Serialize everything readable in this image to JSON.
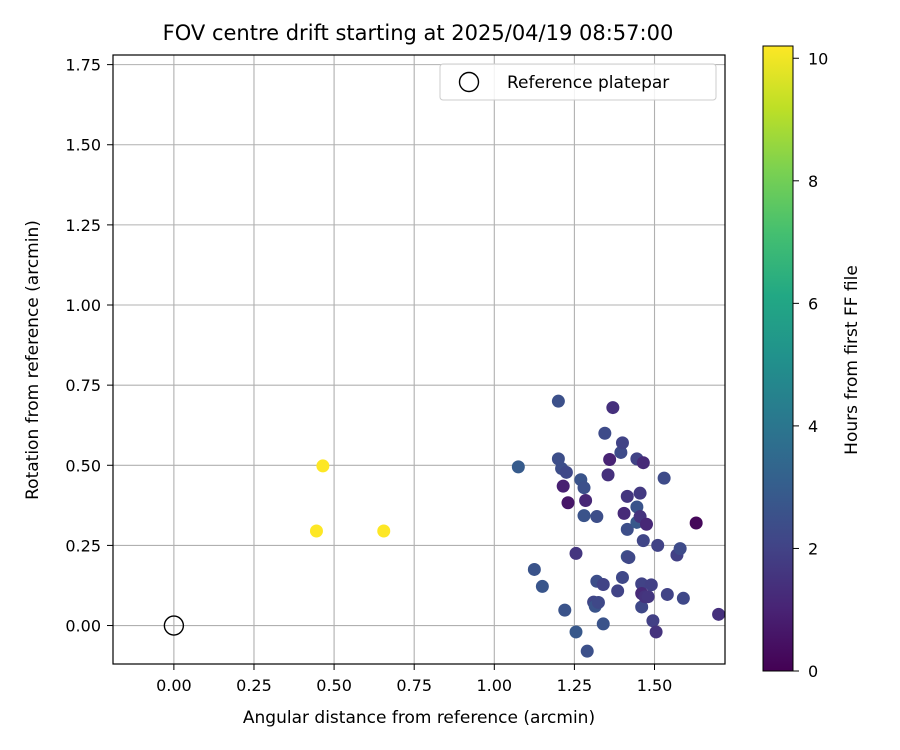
{
  "chart_data": {
    "type": "scatter",
    "title": "FOV centre drift starting at 2025/04/19 08:57:00",
    "xlabel": "Angular distance from reference (arcmin)",
    "ylabel": "Rotation from reference (arcmin)",
    "xlim": [
      -0.19,
      1.72
    ],
    "ylim": [
      -0.12,
      1.78
    ],
    "xticks": [
      "0.00",
      "0.25",
      "0.50",
      "0.75",
      "1.00",
      "1.25",
      "1.50"
    ],
    "yticks": [
      "0.00",
      "0.25",
      "0.50",
      "0.75",
      "1.00",
      "1.25",
      "1.50",
      "1.75"
    ],
    "grid": true,
    "legend": {
      "position": "top-right",
      "label": "Reference platepar"
    },
    "reference_point": {
      "x": 0.0,
      "y": 0.0
    },
    "colorbar": {
      "label": "Hours from first FF file",
      "range": [
        0,
        10.2
      ],
      "ticks": [
        "0",
        "2",
        "4",
        "6",
        "8",
        "10"
      ],
      "colormap": "viridis"
    },
    "points": [
      {
        "x": 0.445,
        "y": 0.295,
        "h": 10.2
      },
      {
        "x": 0.465,
        "y": 0.498,
        "h": 10.2
      },
      {
        "x": 0.655,
        "y": 0.295,
        "h": 10.2
      },
      {
        "x": 1.075,
        "y": 0.495,
        "h": 2.9
      },
      {
        "x": 1.125,
        "y": 0.175,
        "h": 2.6
      },
      {
        "x": 1.15,
        "y": 0.122,
        "h": 2.7
      },
      {
        "x": 1.2,
        "y": 0.7,
        "h": 2.5
      },
      {
        "x": 1.2,
        "y": 0.52,
        "h": 2.4
      },
      {
        "x": 1.21,
        "y": 0.49,
        "h": 2.4
      },
      {
        "x": 1.215,
        "y": 0.435,
        "h": 0.9
      },
      {
        "x": 1.22,
        "y": 0.048,
        "h": 2.6
      },
      {
        "x": 1.225,
        "y": 0.478,
        "h": 2.2
      },
      {
        "x": 1.23,
        "y": 0.383,
        "h": 0.6
      },
      {
        "x": 1.255,
        "y": 0.225,
        "h": 1.6
      },
      {
        "x": 1.255,
        "y": -0.02,
        "h": 2.8
      },
      {
        "x": 1.27,
        "y": 0.455,
        "h": 2.6
      },
      {
        "x": 1.28,
        "y": 0.43,
        "h": 2.5
      },
      {
        "x": 1.28,
        "y": 0.343,
        "h": 2.6
      },
      {
        "x": 1.285,
        "y": 0.39,
        "h": 1.1
      },
      {
        "x": 1.29,
        "y": -0.08,
        "h": 2.5
      },
      {
        "x": 1.31,
        "y": 0.073,
        "h": 2.1
      },
      {
        "x": 1.315,
        "y": 0.06,
        "h": 2.6
      },
      {
        "x": 1.32,
        "y": 0.138,
        "h": 2.4
      },
      {
        "x": 1.32,
        "y": 0.34,
        "h": 2.4
      },
      {
        "x": 1.325,
        "y": 0.072,
        "h": 2.2
      },
      {
        "x": 1.34,
        "y": 0.128,
        "h": 2.0
      },
      {
        "x": 1.34,
        "y": 0.005,
        "h": 2.6
      },
      {
        "x": 1.345,
        "y": 0.6,
        "h": 2.3
      },
      {
        "x": 1.355,
        "y": 0.47,
        "h": 1.4
      },
      {
        "x": 1.36,
        "y": 0.518,
        "h": 1.0
      },
      {
        "x": 1.37,
        "y": 0.68,
        "h": 1.4
      },
      {
        "x": 1.385,
        "y": 0.108,
        "h": 2.0
      },
      {
        "x": 1.395,
        "y": 0.54,
        "h": 2.3
      },
      {
        "x": 1.4,
        "y": 0.57,
        "h": 2.0
      },
      {
        "x": 1.4,
        "y": 0.15,
        "h": 2.2
      },
      {
        "x": 1.405,
        "y": 0.35,
        "h": 1.2
      },
      {
        "x": 1.415,
        "y": 0.403,
        "h": 1.6
      },
      {
        "x": 1.415,
        "y": 0.3,
        "h": 2.4
      },
      {
        "x": 1.415,
        "y": 0.215,
        "h": 2.5
      },
      {
        "x": 1.42,
        "y": 0.212,
        "h": 2.2
      },
      {
        "x": 1.445,
        "y": 0.52,
        "h": 2.0
      },
      {
        "x": 1.445,
        "y": 0.37,
        "h": 2.6
      },
      {
        "x": 1.445,
        "y": 0.322,
        "h": 2.8
      },
      {
        "x": 1.455,
        "y": 0.413,
        "h": 1.7
      },
      {
        "x": 1.455,
        "y": 0.34,
        "h": 1.5
      },
      {
        "x": 1.46,
        "y": 0.13,
        "h": 2.0
      },
      {
        "x": 1.46,
        "y": 0.1,
        "h": 1.2
      },
      {
        "x": 1.46,
        "y": 0.058,
        "h": 2.2
      },
      {
        "x": 1.465,
        "y": 0.508,
        "h": 1.2
      },
      {
        "x": 1.465,
        "y": 0.265,
        "h": 2.1
      },
      {
        "x": 1.47,
        "y": 0.09,
        "h": 1.5
      },
      {
        "x": 1.475,
        "y": 0.316,
        "h": 1.1
      },
      {
        "x": 1.48,
        "y": 0.09,
        "h": 1.6
      },
      {
        "x": 1.49,
        "y": 0.127,
        "h": 1.9
      },
      {
        "x": 1.495,
        "y": 0.015,
        "h": 1.9
      },
      {
        "x": 1.505,
        "y": -0.02,
        "h": 1.5
      },
      {
        "x": 1.51,
        "y": 0.25,
        "h": 2.0
      },
      {
        "x": 1.53,
        "y": 0.46,
        "h": 2.3
      },
      {
        "x": 1.54,
        "y": 0.097,
        "h": 2.0
      },
      {
        "x": 1.57,
        "y": 0.22,
        "h": 1.9
      },
      {
        "x": 1.58,
        "y": 0.24,
        "h": 2.3
      },
      {
        "x": 1.59,
        "y": 0.085,
        "h": 2.2
      },
      {
        "x": 1.63,
        "y": 0.32,
        "h": 0.2
      },
      {
        "x": 1.7,
        "y": 0.035,
        "h": 1.4
      }
    ]
  }
}
